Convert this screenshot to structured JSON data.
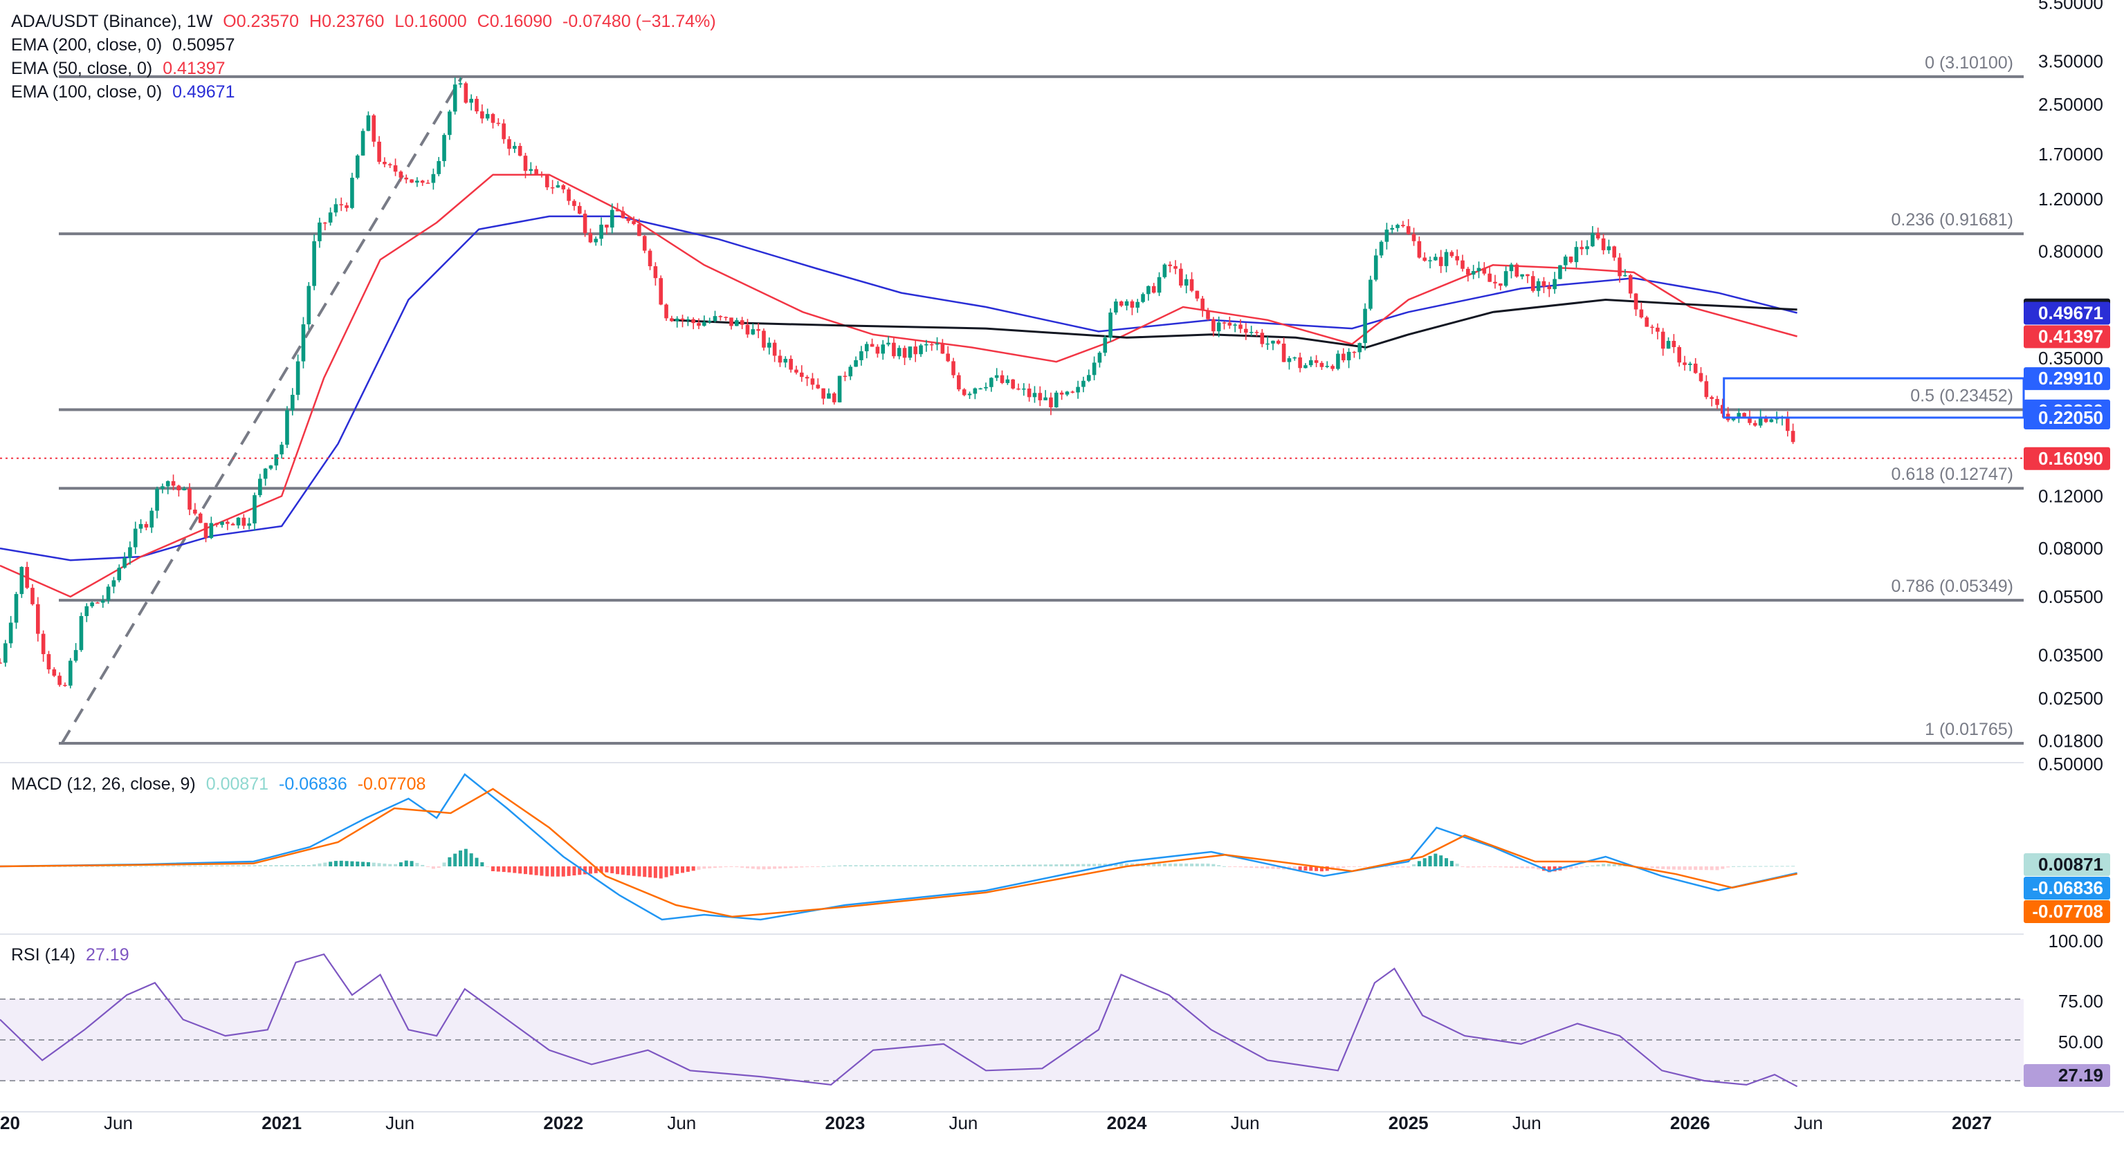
{
  "chart_data": [
    {
      "type": "candlestick",
      "pane": "price",
      "symbol_line": {
        "symbol": "ADA/USDT (Binance), 1W",
        "open": "O0.23570",
        "high": "H0.23760",
        "low": "L0.16000",
        "close": "C0.16090",
        "change": "-0.07480 (−31.74%)"
      },
      "indicators": [
        {
          "label": "EMA (200, close, 0)",
          "value": "0.50957",
          "color": "#131722"
        },
        {
          "label": "EMA (50, close, 0)",
          "value": "0.41397",
          "color": "#f23645"
        },
        {
          "label": "EMA (100, close, 0)",
          "value": "0.49671",
          "color": "#2a2ed6"
        }
      ],
      "y_scale": "log",
      "y_ticks": [
        "5.50000",
        "3.50000",
        "2.50000",
        "1.70000",
        "1.20000",
        "0.80000",
        "0.35000",
        "0.12000",
        "0.08000",
        "0.05500",
        "0.03500",
        "0.02500",
        "0.01800"
      ],
      "y_tick_values": [
        5.5,
        3.5,
        2.5,
        1.7,
        1.2,
        0.8,
        0.35,
        0.12,
        0.08,
        0.055,
        0.035,
        0.025,
        0.018
      ],
      "x_ticks": [
        "2020",
        "Jun",
        "2021",
        "Jun",
        "2022",
        "Jun",
        "2023",
        "Jun",
        "2024",
        "Jun",
        "2025",
        "Jun",
        "2026",
        "Jun",
        "2027"
      ],
      "x_tick_dates": [
        2020.0,
        2020.42,
        2021.0,
        2021.42,
        2022.0,
        2022.42,
        2023.0,
        2023.42,
        2024.0,
        2024.42,
        2025.0,
        2025.42,
        2026.0,
        2026.42,
        2027.0
      ],
      "fib_levels": [
        {
          "label": "0 (3.10100)",
          "value": 3.101
        },
        {
          "label": "0.236 (0.91681)",
          "value": 0.91681
        },
        {
          "label": "0.5 (0.23452)",
          "value": 0.23452
        },
        {
          "label": "0.618 (0.12747)",
          "value": 0.12747
        },
        {
          "label": "0.786 (0.05349)",
          "value": 0.05349
        },
        {
          "label": "1 (0.01765)",
          "value": 0.01765
        }
      ],
      "price_tags": [
        {
          "value": "0.50957",
          "y": 0.50957,
          "bg": "#131722",
          "fg": "#ffffff"
        },
        {
          "value": "0.49671",
          "y": 0.49671,
          "bg": "#2a2ed6",
          "fg": "#ffffff"
        },
        {
          "value": "0.41397",
          "y": 0.41397,
          "bg": "#f23645",
          "fg": "#ffffff"
        },
        {
          "value": "0.29910",
          "y": 0.2991,
          "bg": "#2962ff",
          "fg": "#ffffff"
        },
        {
          "value": "0.23280",
          "y": 0.2328,
          "bg": "#2962ff",
          "fg": "#ffffff"
        },
        {
          "value": "0.22050",
          "y": 0.2205,
          "bg": "#2962ff",
          "fg": "#ffffff"
        },
        {
          "value": "0.16090",
          "y": 0.1609,
          "bg": "#f23645",
          "fg": "#ffffff"
        }
      ],
      "close_path": [
        [
          2020.0,
          0.033
        ],
        [
          2020.08,
          0.07
        ],
        [
          2020.16,
          0.035
        ],
        [
          2020.22,
          0.025
        ],
        [
          2020.3,
          0.05
        ],
        [
          2020.38,
          0.055
        ],
        [
          2020.45,
          0.08
        ],
        [
          2020.52,
          0.1
        ],
        [
          2020.58,
          0.14
        ],
        [
          2020.66,
          0.12
        ],
        [
          2020.72,
          0.09
        ],
        [
          2020.8,
          0.1
        ],
        [
          2020.88,
          0.1
        ],
        [
          2020.94,
          0.15
        ],
        [
          2021.0,
          0.18
        ],
        [
          2021.06,
          0.35
        ],
        [
          2021.12,
          0.9
        ],
        [
          2021.18,
          1.1
        ],
        [
          2021.24,
          1.2
        ],
        [
          2021.3,
          2.3
        ],
        [
          2021.36,
          1.5
        ],
        [
          2021.42,
          1.5
        ],
        [
          2021.5,
          1.3
        ],
        [
          2021.55,
          1.6
        ],
        [
          2021.62,
          2.9
        ],
        [
          2021.68,
          2.5
        ],
        [
          2021.74,
          2.2
        ],
        [
          2021.82,
          1.8
        ],
        [
          2021.9,
          1.4
        ],
        [
          2022.0,
          1.3
        ],
        [
          2022.1,
          0.9
        ],
        [
          2022.2,
          1.1
        ],
        [
          2022.3,
          0.8
        ],
        [
          2022.36,
          0.5
        ],
        [
          2022.45,
          0.46
        ],
        [
          2022.55,
          0.47
        ],
        [
          2022.65,
          0.45
        ],
        [
          2022.75,
          0.36
        ],
        [
          2022.85,
          0.32
        ],
        [
          2022.95,
          0.25
        ],
        [
          2023.03,
          0.36
        ],
        [
          2023.12,
          0.38
        ],
        [
          2023.22,
          0.36
        ],
        [
          2023.32,
          0.39
        ],
        [
          2023.42,
          0.27
        ],
        [
          2023.52,
          0.3
        ],
        [
          2023.62,
          0.27
        ],
        [
          2023.72,
          0.25
        ],
        [
          2023.82,
          0.26
        ],
        [
          2023.9,
          0.38
        ],
        [
          2023.97,
          0.55
        ],
        [
          2024.06,
          0.55
        ],
        [
          2024.15,
          0.72
        ],
        [
          2024.22,
          0.6
        ],
        [
          2024.3,
          0.45
        ],
        [
          2024.42,
          0.45
        ],
        [
          2024.52,
          0.38
        ],
        [
          2024.62,
          0.33
        ],
        [
          2024.72,
          0.34
        ],
        [
          2024.82,
          0.35
        ],
        [
          2024.88,
          0.8
        ],
        [
          2024.95,
          1.05
        ],
        [
          2025.0,
          0.9
        ],
        [
          2025.08,
          0.72
        ],
        [
          2025.15,
          0.78
        ],
        [
          2025.22,
          0.7
        ],
        [
          2025.3,
          0.62
        ],
        [
          2025.38,
          0.7
        ],
        [
          2025.48,
          0.58
        ],
        [
          2025.58,
          0.78
        ],
        [
          2025.65,
          0.88
        ],
        [
          2025.72,
          0.82
        ],
        [
          2025.78,
          0.6
        ],
        [
          2025.85,
          0.45
        ],
        [
          2025.92,
          0.38
        ],
        [
          2026.0,
          0.33
        ],
        [
          2026.08,
          0.24
        ],
        [
          2026.16,
          0.22
        ],
        [
          2026.24,
          0.22
        ],
        [
          2026.32,
          0.23
        ],
        [
          2026.38,
          0.1609
        ]
      ],
      "ema200": [
        [
          2022.38,
          0.47
        ],
        [
          2022.6,
          0.46
        ],
        [
          2023.0,
          0.45
        ],
        [
          2023.5,
          0.44
        ],
        [
          2024.0,
          0.41
        ],
        [
          2024.3,
          0.42
        ],
        [
          2024.6,
          0.41
        ],
        [
          2024.85,
          0.38
        ],
        [
          2025.0,
          0.42
        ],
        [
          2025.3,
          0.5
        ],
        [
          2025.7,
          0.55
        ],
        [
          2026.0,
          0.53
        ],
        [
          2026.38,
          0.50957
        ]
      ],
      "ema50": [
        [
          2020.0,
          0.07
        ],
        [
          2020.25,
          0.055
        ],
        [
          2020.5,
          0.075
        ],
        [
          2020.75,
          0.095
        ],
        [
          2021.0,
          0.12
        ],
        [
          2021.15,
          0.3
        ],
        [
          2021.35,
          0.75
        ],
        [
          2021.55,
          1.0
        ],
        [
          2021.75,
          1.45
        ],
        [
          2021.95,
          1.45
        ],
        [
          2022.2,
          1.1
        ],
        [
          2022.5,
          0.72
        ],
        [
          2022.85,
          0.5
        ],
        [
          2023.1,
          0.42
        ],
        [
          2023.45,
          0.38
        ],
        [
          2023.75,
          0.34
        ],
        [
          2023.95,
          0.4
        ],
        [
          2024.2,
          0.52
        ],
        [
          2024.5,
          0.47
        ],
        [
          2024.8,
          0.39
        ],
        [
          2025.0,
          0.55
        ],
        [
          2025.3,
          0.72
        ],
        [
          2025.6,
          0.7
        ],
        [
          2025.8,
          0.68
        ],
        [
          2026.0,
          0.52
        ],
        [
          2026.38,
          0.41397
        ]
      ],
      "ema100": [
        [
          2020.0,
          0.08
        ],
        [
          2020.25,
          0.073
        ],
        [
          2020.5,
          0.075
        ],
        [
          2020.75,
          0.088
        ],
        [
          2021.0,
          0.095
        ],
        [
          2021.2,
          0.18
        ],
        [
          2021.45,
          0.55
        ],
        [
          2021.7,
          0.95
        ],
        [
          2021.95,
          1.05
        ],
        [
          2022.2,
          1.05
        ],
        [
          2022.55,
          0.88
        ],
        [
          2022.9,
          0.7
        ],
        [
          2023.2,
          0.58
        ],
        [
          2023.5,
          0.52
        ],
        [
          2023.9,
          0.43
        ],
        [
          2024.3,
          0.47
        ],
        [
          2024.8,
          0.44
        ],
        [
          2025.0,
          0.5
        ],
        [
          2025.4,
          0.6
        ],
        [
          2025.8,
          0.65
        ],
        [
          2026.1,
          0.58
        ],
        [
          2026.38,
          0.49671
        ]
      ]
    },
    {
      "type": "line+histogram",
      "pane": "macd",
      "label": "MACD (12, 26, close, 9)",
      "values_text": {
        "histogram": "0.00871",
        "macd": "-0.06836",
        "signal": "-0.07708"
      },
      "colors": {
        "histogram": "#26a69a",
        "macd": "#2196f3",
        "signal": "#ff6d00"
      },
      "y_ticks": [
        "0.50000"
      ],
      "macd_line": [
        [
          2020.0,
          0.0
        ],
        [
          2020.5,
          0.02
        ],
        [
          2020.9,
          0.05
        ],
        [
          2021.1,
          0.2
        ],
        [
          2021.3,
          0.5
        ],
        [
          2021.45,
          0.7
        ],
        [
          2021.55,
          0.5
        ],
        [
          2021.65,
          0.95
        ],
        [
          2021.8,
          0.6
        ],
        [
          2022.0,
          0.1
        ],
        [
          2022.2,
          -0.3
        ],
        [
          2022.35,
          -0.55
        ],
        [
          2022.5,
          -0.5
        ],
        [
          2022.7,
          -0.55
        ],
        [
          2023.0,
          -0.4
        ],
        [
          2023.5,
          -0.25
        ],
        [
          2024.0,
          0.05
        ],
        [
          2024.3,
          0.15
        ],
        [
          2024.7,
          -0.1
        ],
        [
          2025.0,
          0.05
        ],
        [
          2025.1,
          0.4
        ],
        [
          2025.3,
          0.2
        ],
        [
          2025.5,
          -0.05
        ],
        [
          2025.7,
          0.1
        ],
        [
          2025.9,
          -0.1
        ],
        [
          2026.1,
          -0.25
        ],
        [
          2026.38,
          -0.06836
        ]
      ],
      "signal_line": [
        [
          2020.0,
          0.0
        ],
        [
          2020.5,
          0.015
        ],
        [
          2020.9,
          0.03
        ],
        [
          2021.2,
          0.25
        ],
        [
          2021.4,
          0.6
        ],
        [
          2021.6,
          0.55
        ],
        [
          2021.75,
          0.8
        ],
        [
          2021.95,
          0.4
        ],
        [
          2022.15,
          -0.1
        ],
        [
          2022.4,
          -0.4
        ],
        [
          2022.6,
          -0.52
        ],
        [
          2023.0,
          -0.42
        ],
        [
          2023.5,
          -0.27
        ],
        [
          2024.0,
          0.0
        ],
        [
          2024.35,
          0.12
        ],
        [
          2024.8,
          -0.05
        ],
        [
          2025.05,
          0.1
        ],
        [
          2025.2,
          0.32
        ],
        [
          2025.45,
          0.05
        ],
        [
          2025.7,
          0.05
        ],
        [
          2025.95,
          -0.08
        ],
        [
          2026.15,
          -0.22
        ],
        [
          2026.38,
          -0.07708
        ]
      ]
    },
    {
      "type": "line",
      "pane": "rsi",
      "label": "RSI (14)",
      "value_text": "27.19",
      "color": "#7e57c2",
      "y_ticks": [
        "100.00",
        "75.00",
        "50.00"
      ],
      "band": [
        30,
        70
      ],
      "rsi_line": [
        [
          2020.0,
          60
        ],
        [
          2020.15,
          40
        ],
        [
          2020.3,
          55
        ],
        [
          2020.45,
          72
        ],
        [
          2020.55,
          78
        ],
        [
          2020.65,
          60
        ],
        [
          2020.8,
          52
        ],
        [
          2020.95,
          55
        ],
        [
          2021.05,
          88
        ],
        [
          2021.15,
          92
        ],
        [
          2021.25,
          72
        ],
        [
          2021.35,
          82
        ],
        [
          2021.45,
          55
        ],
        [
          2021.55,
          52
        ],
        [
          2021.65,
          75
        ],
        [
          2021.8,
          60
        ],
        [
          2021.95,
          45
        ],
        [
          2022.1,
          38
        ],
        [
          2022.3,
          45
        ],
        [
          2022.45,
          35
        ],
        [
          2022.7,
          32
        ],
        [
          2022.95,
          28
        ],
        [
          2023.1,
          45
        ],
        [
          2023.35,
          48
        ],
        [
          2023.5,
          35
        ],
        [
          2023.7,
          36
        ],
        [
          2023.9,
          55
        ],
        [
          2023.98,
          82
        ],
        [
          2024.15,
          72
        ],
        [
          2024.3,
          55
        ],
        [
          2024.5,
          40
        ],
        [
          2024.75,
          35
        ],
        [
          2024.88,
          78
        ],
        [
          2024.95,
          85
        ],
        [
          2025.05,
          62
        ],
        [
          2025.2,
          52
        ],
        [
          2025.4,
          48
        ],
        [
          2025.6,
          58
        ],
        [
          2025.75,
          52
        ],
        [
          2025.9,
          35
        ],
        [
          2026.05,
          30
        ],
        [
          2026.2,
          28
        ],
        [
          2026.3,
          33
        ],
        [
          2026.38,
          27.19
        ]
      ]
    }
  ]
}
